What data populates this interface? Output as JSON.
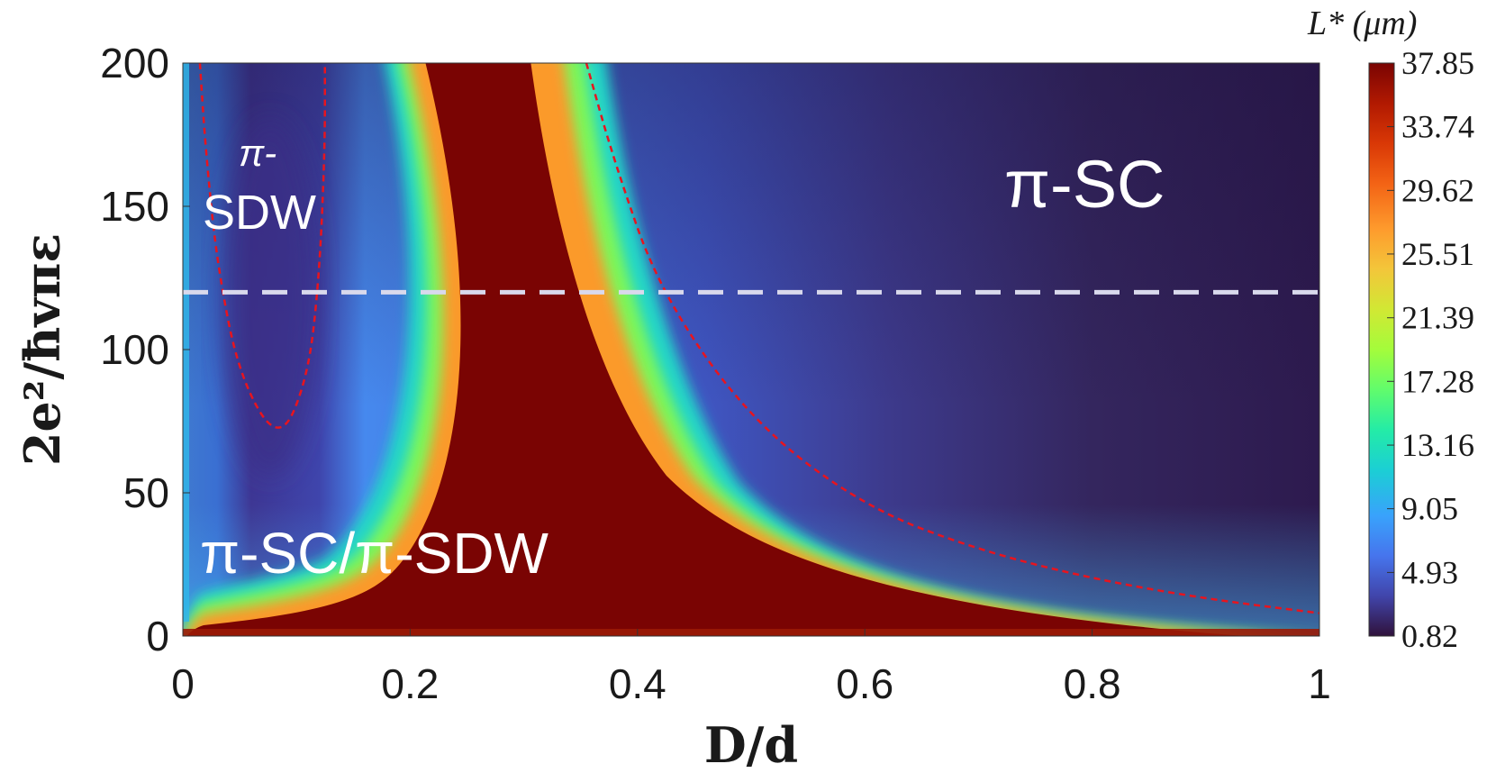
{
  "chart_data": {
    "type": "heatmap",
    "title": "",
    "xlabel": "D/d",
    "ylabel": "2e²/ħvπε",
    "xlim": [
      0,
      1
    ],
    "ylim": [
      0,
      200
    ],
    "x_ticks": [
      "0",
      "0.2",
      "0.4",
      "0.6",
      "0.8",
      "1"
    ],
    "y_ticks": [
      "0",
      "50",
      "100",
      "150",
      "200"
    ],
    "colorbar": {
      "label": "L* (μm)",
      "min": 0.82,
      "max": 37.85,
      "ticks": [
        "37.85",
        "33.74",
        "29.62",
        "25.51",
        "21.39",
        "17.28",
        "13.16",
        "9.05",
        "4.93",
        "0.82"
      ]
    },
    "reference_line": {
      "y": 120,
      "style": "dashed",
      "color": "#d9d9ec"
    },
    "boundary_curves": [
      {
        "name": "pi-SDW boundary",
        "points": [
          [
            0.015,
            200
          ],
          [
            0.02,
            170
          ],
          [
            0.03,
            130
          ],
          [
            0.05,
            90
          ],
          [
            0.085,
            67
          ],
          [
            0.11,
            90
          ],
          [
            0.12,
            125
          ],
          [
            0.125,
            170
          ],
          [
            0.125,
            200
          ]
        ]
      },
      {
        "name": "pi-SC boundary",
        "points": [
          [
            0.355,
            200
          ],
          [
            0.38,
            165
          ],
          [
            0.42,
            120
          ],
          [
            0.5,
            75
          ],
          [
            0.6,
            45
          ],
          [
            0.7,
            30
          ],
          [
            0.8,
            20
          ],
          [
            0.9,
            13
          ],
          [
            1.0,
            8
          ]
        ]
      }
    ],
    "annotations": [
      {
        "text": "π-",
        "x": 0.07,
        "y": 170
      },
      {
        "text": "SDW",
        "x": 0.08,
        "y": 147
      },
      {
        "text": "π-SC",
        "x": 0.85,
        "y": 157
      },
      {
        "text": "π-SC/π-SDW",
        "x": 0.19,
        "y": 27
      }
    ]
  },
  "colors": {
    "background": "#2d1a4e",
    "high": "#7a0403",
    "reference_line": "#d9d9ec",
    "boundary": "#e8141e",
    "text": "#ffffff"
  }
}
